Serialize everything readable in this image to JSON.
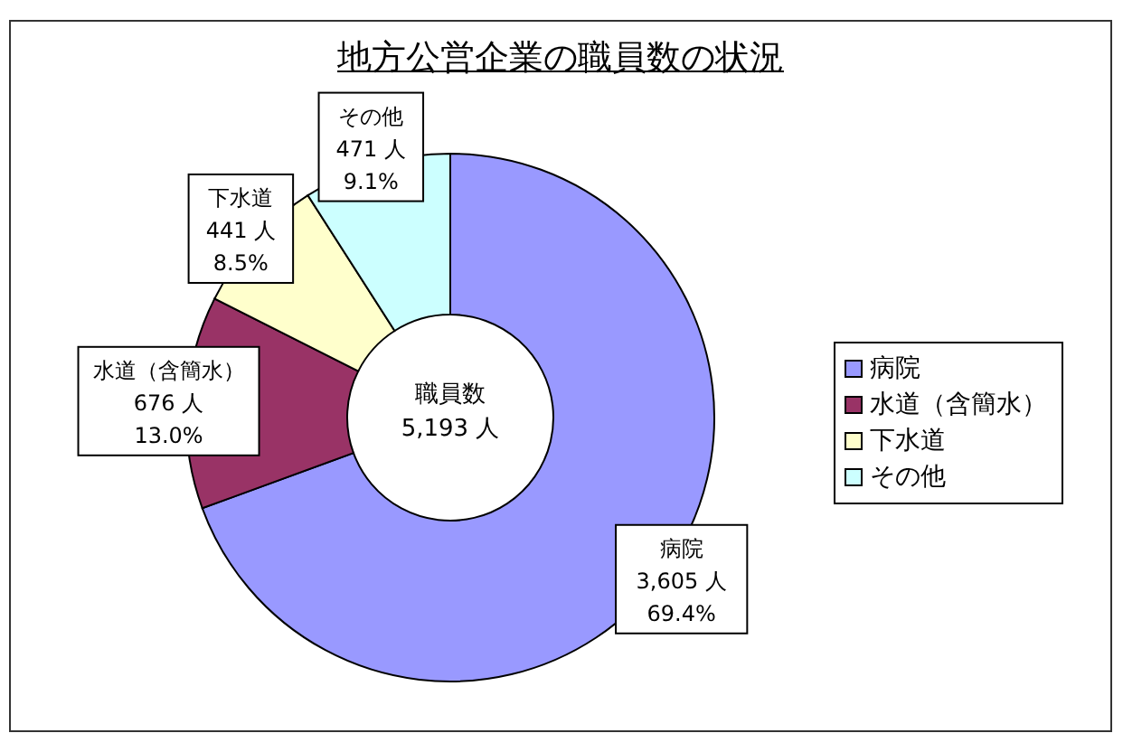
{
  "chart_data": {
    "type": "donut",
    "title": "地方公営企業の職員数の状況",
    "categories": [
      "病院",
      "水道（含簡水）",
      "下水道",
      "その他"
    ],
    "values": [
      3605,
      676,
      441,
      471
    ],
    "colors": [
      "#9999ff",
      "#993366",
      "#ffffcc",
      "#ccffff"
    ],
    "value_labels": [
      "3,605 人\n69.4%",
      "676 人\n13.0%",
      "441 人\n8.5%",
      "471 人\n9.1%"
    ],
    "annotations": [
      "職員数",
      "5,193 人"
    ],
    "legend": "right"
  }
}
